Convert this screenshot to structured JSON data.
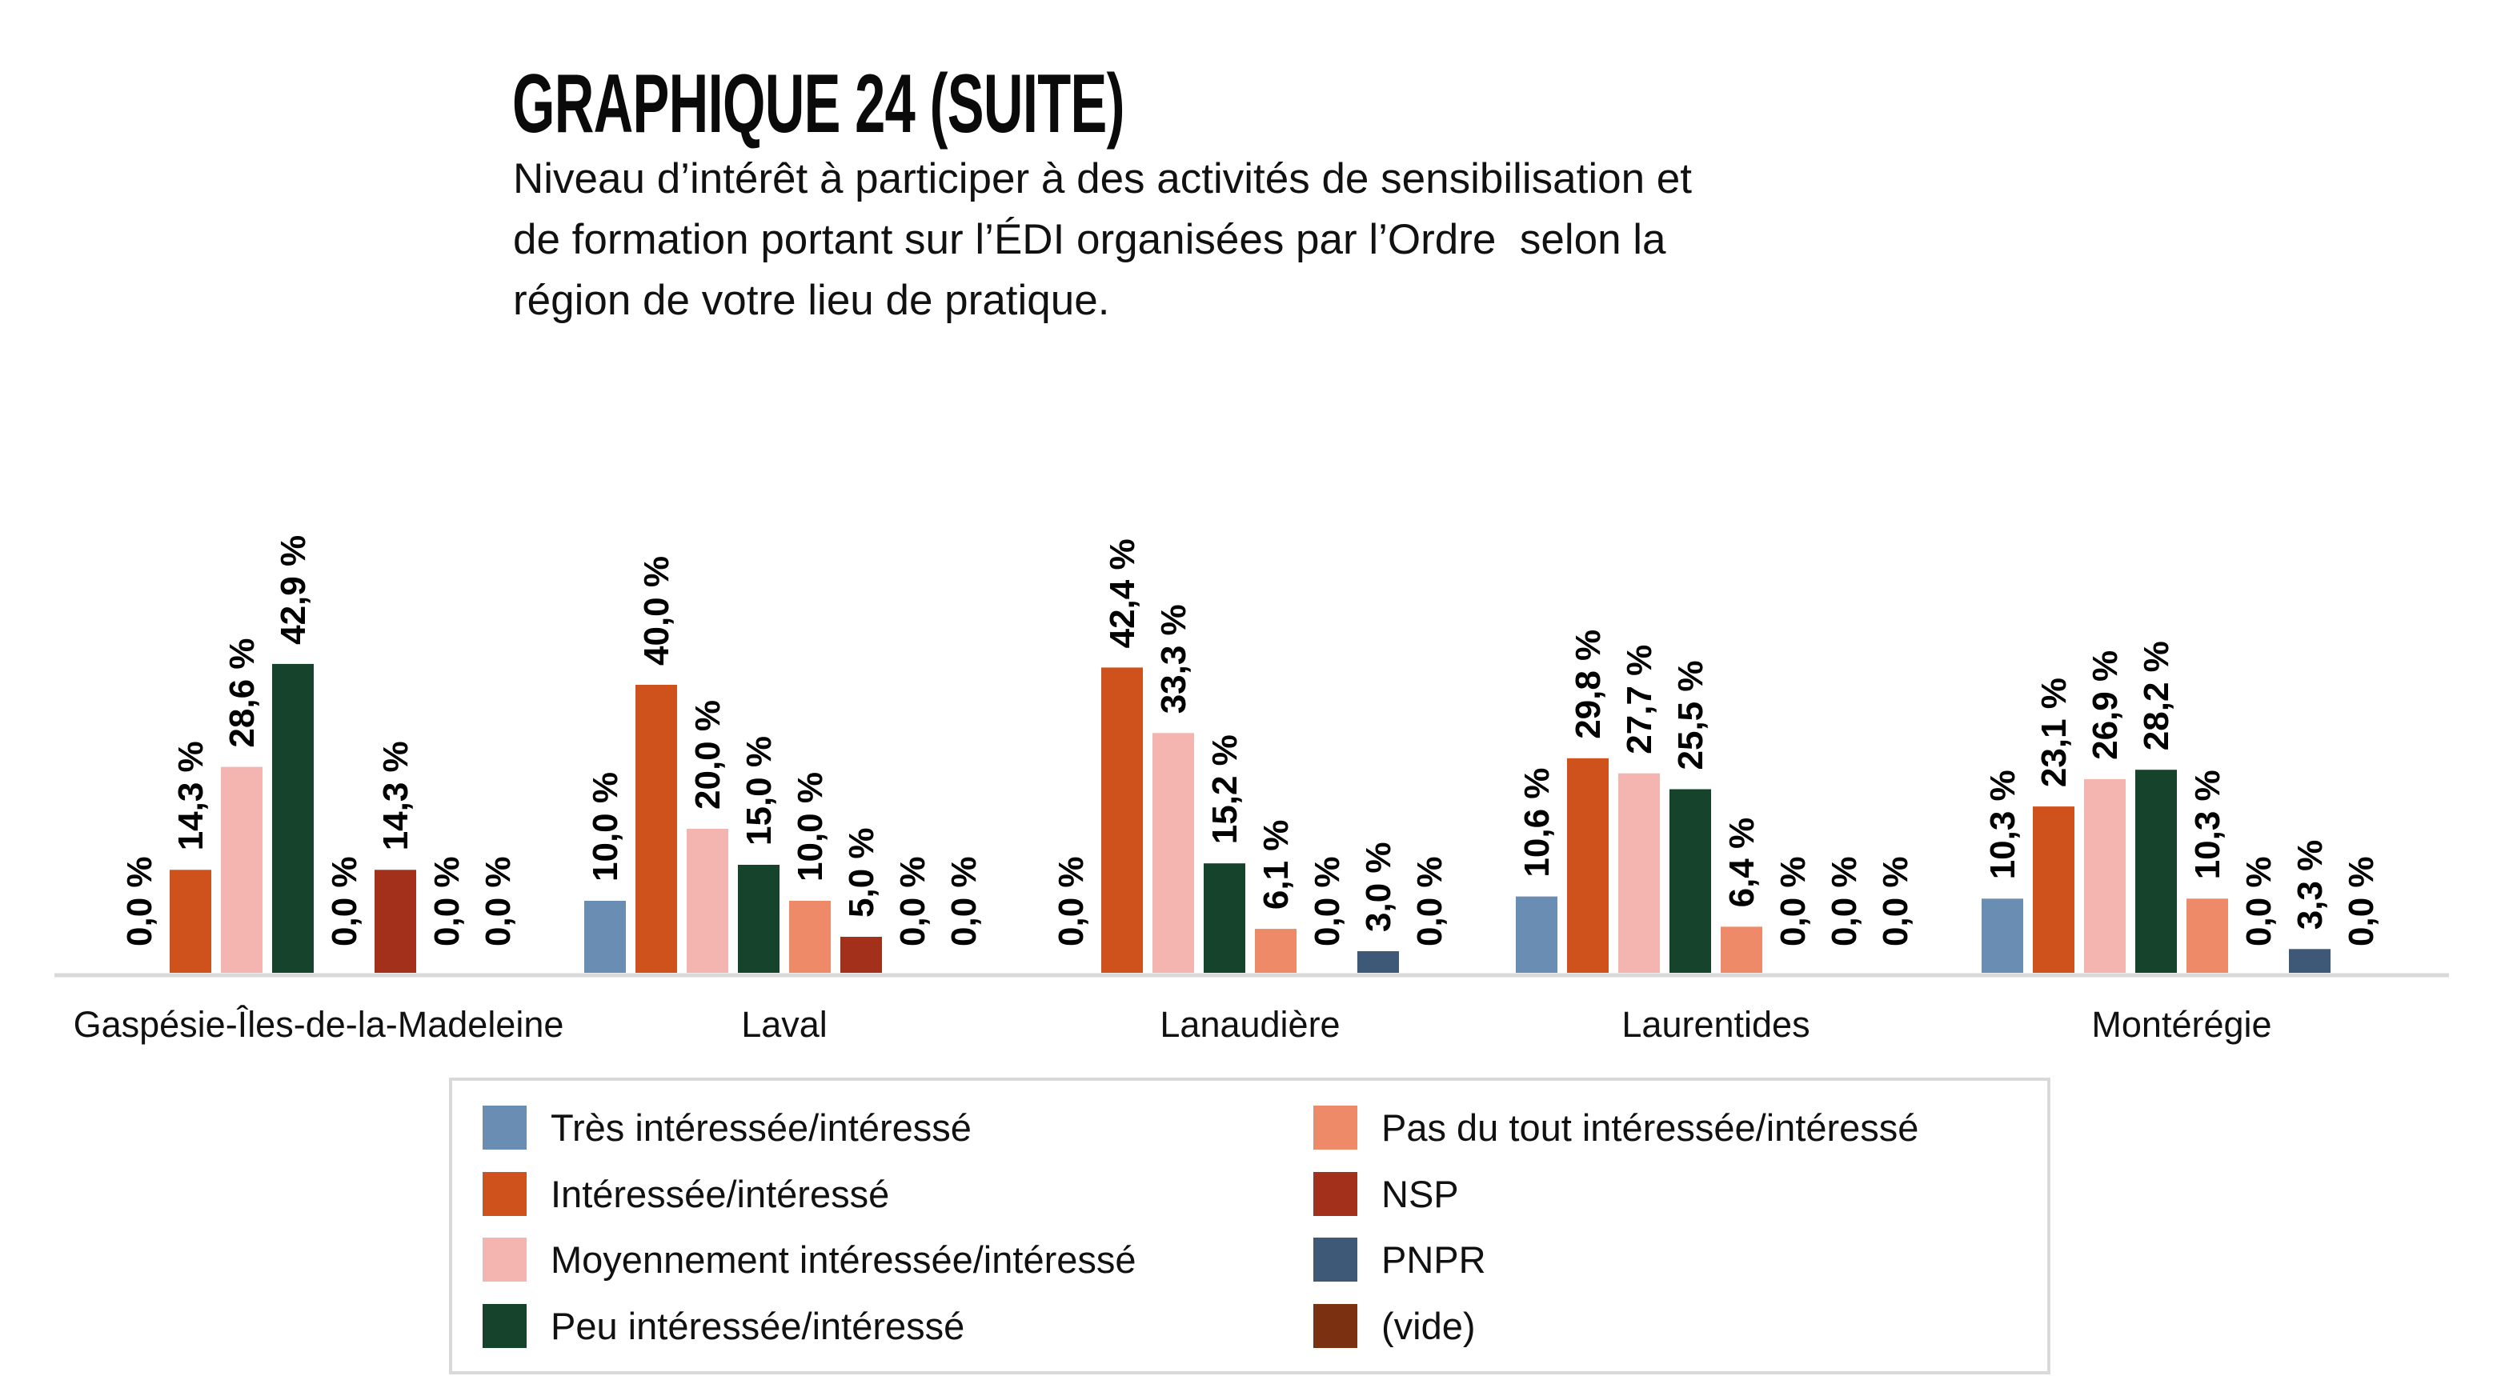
{
  "header": {
    "title": "GRAPHIQUE 24 (SUITE)",
    "subtitle_lines": [
      "Niveau d’intérêt à participer à des activités de sensibilisation et",
      "de formation portant sur l’ÉDI organisées par l’Ordre  selon la",
      "région de votre lieu de pratique."
    ]
  },
  "chart_data": {
    "type": "bar",
    "title": "GRAPHIQUE 24 (SUITE)",
    "subtitle": "Niveau d’intérêt à participer à des activités de sensibilisation et de formation portant sur l’ÉDI organisées par l’Ordre  selon la région de votre lieu de pratique.",
    "xlabel": "",
    "ylabel": "",
    "ylim": [
      0,
      50
    ],
    "grid": false,
    "legend_position": "bottom",
    "value_suffix": " %",
    "categories": [
      "Gaspésie-Îles-de-la-Madeleine",
      "Laval",
      "Lanaudière",
      "Laurentides",
      "Montérégie"
    ],
    "series": [
      {
        "name": "Très intéressée/intéressé",
        "color": "#6a8db3",
        "values": [
          0.0,
          10.0,
          0.0,
          10.6,
          10.3
        ],
        "labels": [
          "0,0 %",
          "10,0 %",
          "0,0 %",
          "10,6 %",
          "10,3 %"
        ]
      },
      {
        "name": "Intéressée/intéressé",
        "color": "#cf511c",
        "values": [
          14.3,
          40.0,
          42.4,
          29.8,
          23.1
        ],
        "labels": [
          "14,3 %",
          "40,0 %",
          "42,4 %",
          "29,8 %",
          "23,1 %"
        ]
      },
      {
        "name": "Moyennement intéressée/intéressé",
        "color": "#f4b5b0",
        "values": [
          28.6,
          20.0,
          33.3,
          27.7,
          26.9
        ],
        "labels": [
          "28,6 %",
          "20,0 %",
          "33,3 %",
          "27,7 %",
          "26,9 %"
        ]
      },
      {
        "name": "Peu intéressée/intéressé",
        "color": "#16432c",
        "values": [
          42.9,
          15.0,
          15.2,
          25.5,
          28.2
        ],
        "labels": [
          "42,9 %",
          "15,0 %",
          "15,2 %",
          "25,5 %",
          "28,2 %"
        ]
      },
      {
        "name": "Pas du tout intéressée/intéressé",
        "color": "#ef8a68",
        "values": [
          0.0,
          10.0,
          6.1,
          6.4,
          10.3
        ],
        "labels": [
          "0,0 %",
          "10,0 %",
          "6,1 %",
          "6,4 %",
          "10,3 %"
        ]
      },
      {
        "name": "NSP",
        "color": "#a2301a",
        "values": [
          14.3,
          5.0,
          0.0,
          0.0,
          0.0
        ],
        "labels": [
          "14,3 %",
          "5,0 %",
          "0,0 %",
          "0,0 %",
          "0,0 %"
        ]
      },
      {
        "name": "PNPR",
        "color": "#3e5878",
        "values": [
          0.0,
          0.0,
          3.0,
          0.0,
          3.3
        ],
        "labels": [
          "0,0 %",
          "0,0 %",
          "3,0 %",
          "0,0 %",
          "3,3 %"
        ]
      },
      {
        "name": "(vide)",
        "color": "#7b3012",
        "values": [
          0.0,
          0.0,
          0.0,
          0.0,
          0.0
        ],
        "labels": [
          "0,0 %",
          "0,0 %",
          "0,0 %",
          "0,0 %",
          "0,0 %"
        ]
      }
    ]
  },
  "legend": {
    "items": [
      {
        "label": "Très intéressée/intéressé",
        "color": "#6a8db3"
      },
      {
        "label": "Intéressée/intéressé",
        "color": "#cf511c"
      },
      {
        "label": "Moyennement intéressée/intéressé",
        "color": "#f4b5b0"
      },
      {
        "label": "Peu intéressée/intéressé",
        "color": "#16432c"
      },
      {
        "label": "Pas du tout intéressée/intéressé",
        "color": "#ef8a68"
      },
      {
        "label": "NSP",
        "color": "#a2301a"
      },
      {
        "label": "PNPR",
        "color": "#3e5878"
      },
      {
        "label": "(vide)",
        "color": "#7b3012"
      }
    ]
  },
  "colors": {
    "axis": "#d9d9d9",
    "text": "#111111"
  }
}
